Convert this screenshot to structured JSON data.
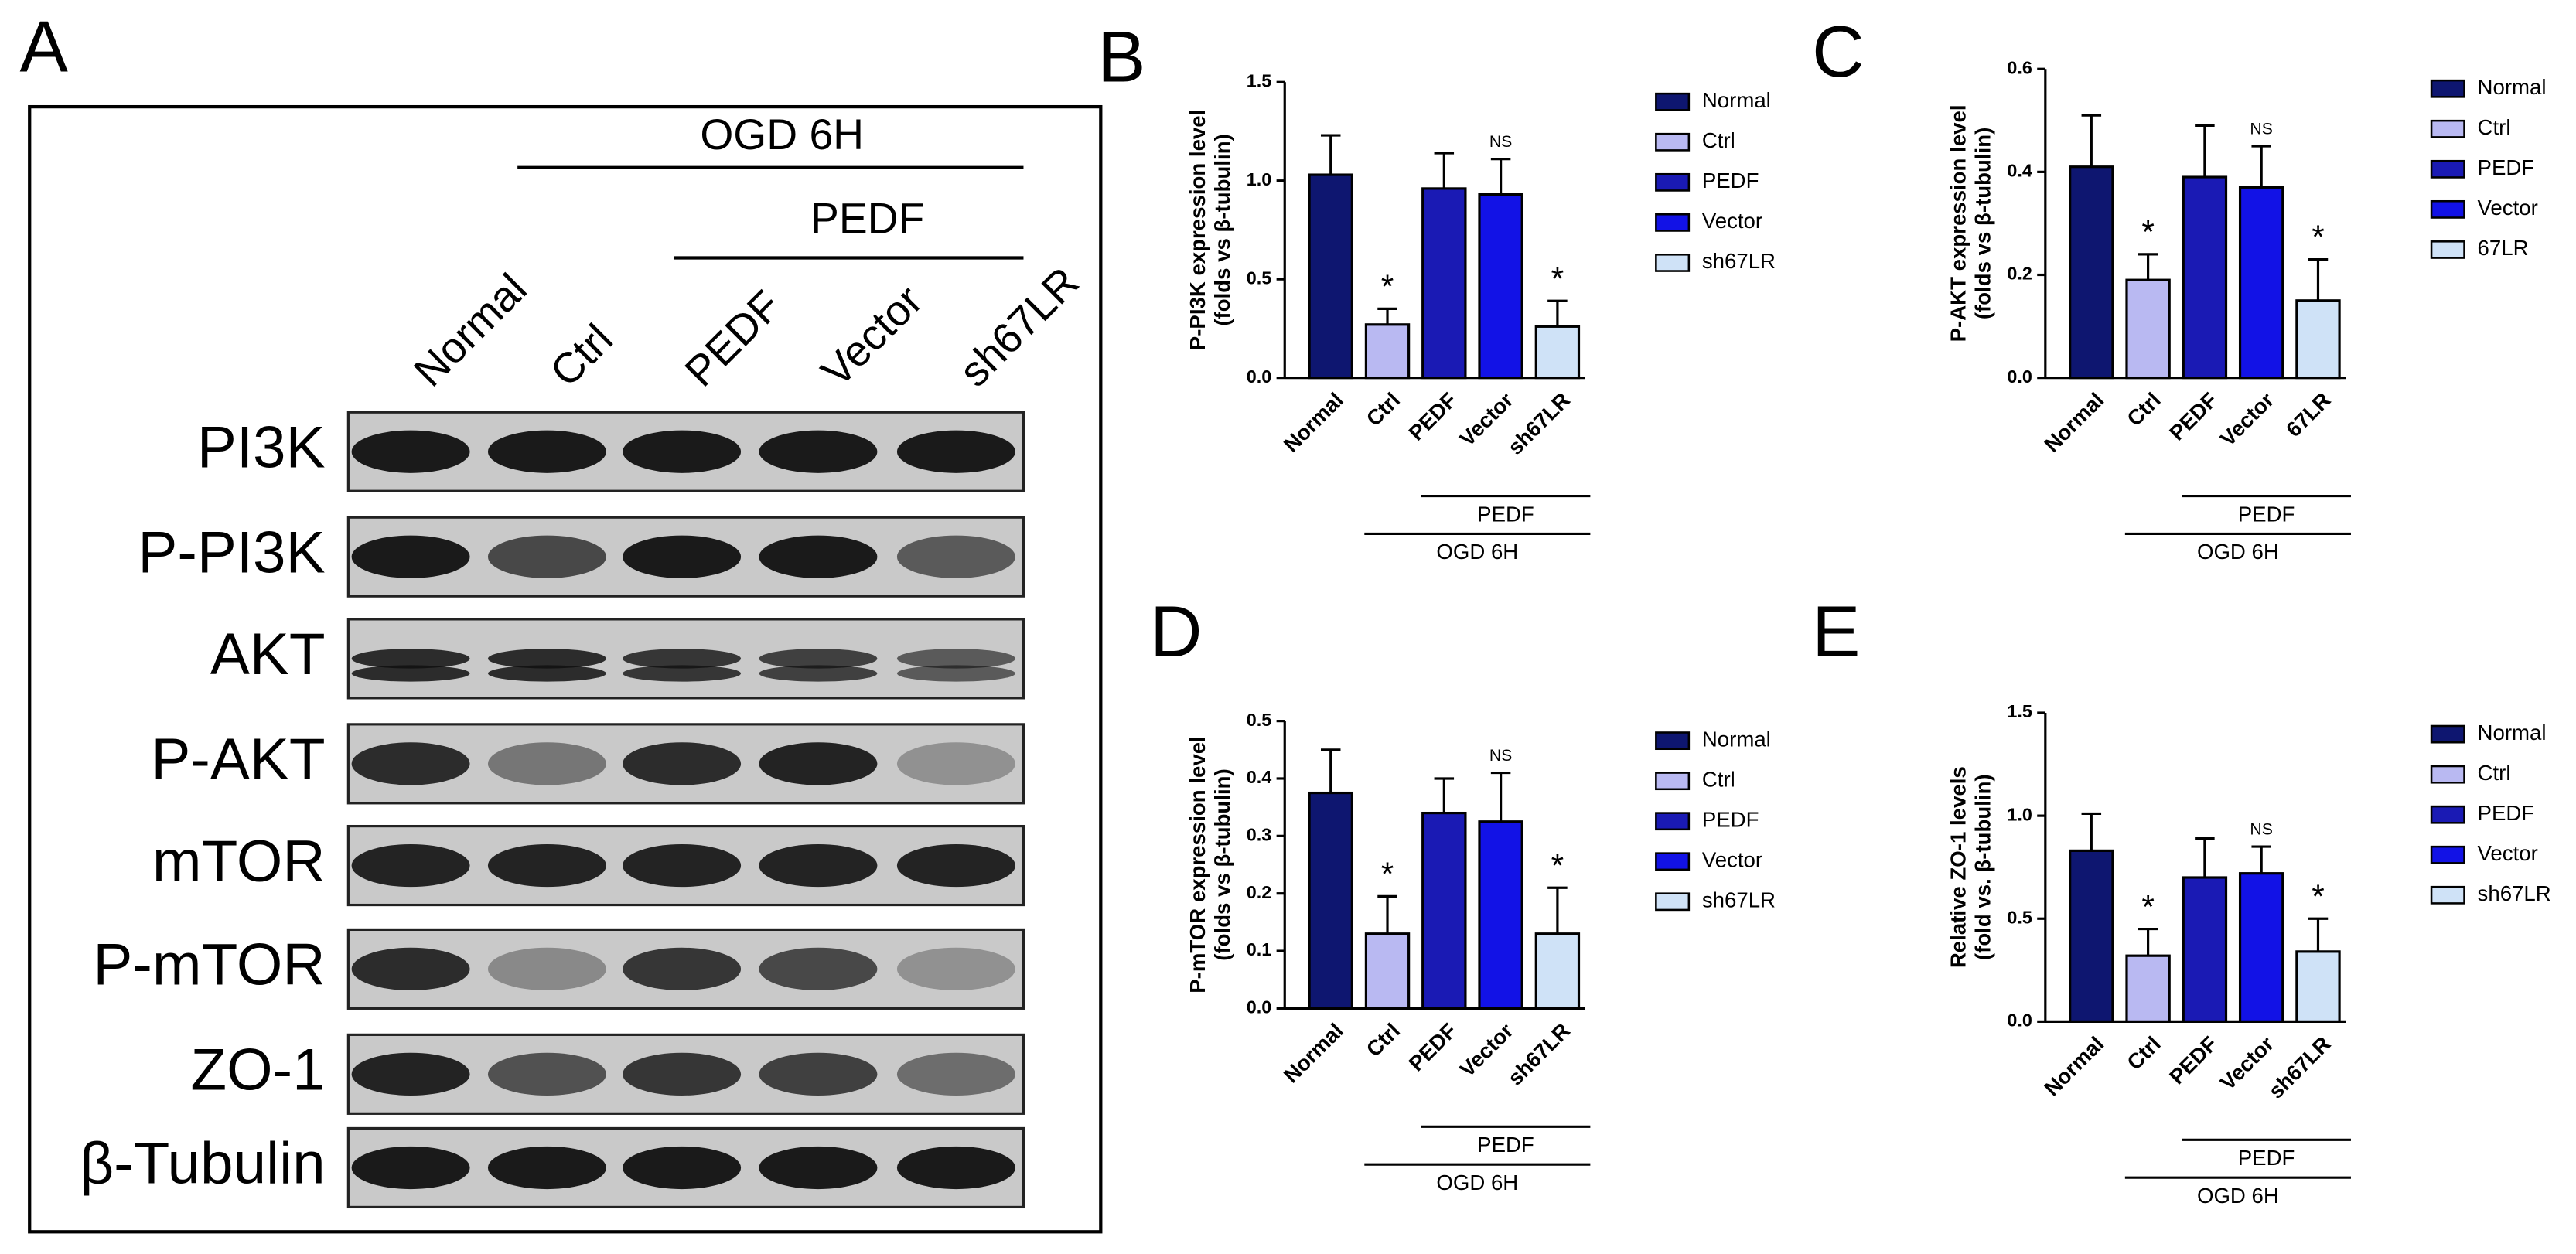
{
  "chart_data": [
    {
      "type": "bar",
      "panel": "B",
      "ylabel": [
        "P-PI3K expression level",
        "(folds vs β-tubulin)"
      ],
      "categories": [
        "Normal",
        "Ctrl",
        "PEDF",
        "Vector",
        "sh67LR"
      ],
      "values": [
        1.03,
        0.27,
        0.96,
        0.93,
        0.26
      ],
      "errors": [
        0.2,
        0.08,
        0.18,
        0.18,
        0.13
      ],
      "colors": [
        "#0e1670",
        "#b9b9f2",
        "#1a1ab4",
        "#1212e6",
        "#cfe2f7"
      ],
      "annotations": [
        null,
        "*",
        null,
        "NS",
        "*"
      ],
      "groups": [
        "PEDF",
        "OGD 6H"
      ],
      "ylim": [
        0,
        1.5
      ],
      "yticks": [
        {
          "value": 0,
          "label": "0.0"
        },
        0.5,
        {
          "value": 1,
          "label": "1.0"
        },
        1.5
      ]
    },
    {
      "type": "bar",
      "panel": "C",
      "ylabel": [
        "P-AKT expression level",
        "(folds vs β-tubulin)"
      ],
      "categories": [
        "Normal",
        "Ctrl",
        "PEDF",
        "Vector",
        "67LR"
      ],
      "values": [
        0.41,
        0.19,
        0.39,
        0.37,
        0.15
      ],
      "errors": [
        0.1,
        0.05,
        0.1,
        0.08,
        0.08
      ],
      "colors": [
        "#0e1670",
        "#b9b9f2",
        "#1a1ab4",
        "#1212e6",
        "#cfe2f7"
      ],
      "annotations": [
        null,
        "*",
        null,
        "NS",
        "*"
      ],
      "groups": [
        "PEDF",
        "OGD 6H"
      ],
      "ylim": [
        0,
        0.6
      ],
      "yticks": [
        {
          "value": 0,
          "label": "0.0"
        },
        0.2,
        0.4,
        0.6
      ]
    },
    {
      "type": "bar",
      "panel": "D",
      "ylabel": [
        "P-mTOR expression level",
        "(folds vs β-tubulin)"
      ],
      "categories": [
        "Normal",
        "Ctrl",
        "PEDF",
        "Vector",
        "sh67LR"
      ],
      "values": [
        0.375,
        0.13,
        0.34,
        0.325,
        0.13
      ],
      "errors": [
        0.075,
        0.065,
        0.06,
        0.085,
        0.08
      ],
      "colors": [
        "#0e1670",
        "#b9b9f2",
        "#1a1ab4",
        "#1212e6",
        "#cfe2f7"
      ],
      "annotations": [
        null,
        "*",
        null,
        "NS",
        "*"
      ],
      "groups": [
        "PEDF",
        "OGD 6H"
      ],
      "ylim": [
        0,
        0.5
      ],
      "yticks": [
        {
          "value": 0,
          "label": "0.0"
        },
        0.1,
        0.2,
        0.3,
        0.4,
        0.5
      ]
    },
    {
      "type": "bar",
      "panel": "E",
      "ylabel": [
        "Relative ZO-1 levels",
        "(fold vs. β-tubulin)"
      ],
      "categories": [
        "Normal",
        "Ctrl",
        "PEDF",
        "Vector",
        "sh67LR"
      ],
      "values": [
        0.83,
        0.32,
        0.7,
        0.72,
        0.34
      ],
      "errors": [
        0.18,
        0.13,
        0.19,
        0.13,
        0.16
      ],
      "colors": [
        "#0e1670",
        "#b9b9f2",
        "#1a1ab4",
        "#1212e6",
        "#cfe2f7"
      ],
      "annotations": [
        null,
        "*",
        null,
        "NS",
        "*"
      ],
      "groups": [
        "PEDF",
        "OGD 6H"
      ],
      "ylim": [
        0,
        1.5
      ],
      "yticks": [
        {
          "value": 0,
          "label": "0.0"
        },
        0.5,
        {
          "value": 1,
          "label": "1.0"
        },
        1.5
      ]
    }
  ],
  "blot": {
    "panel": "A",
    "headers": [
      "OGD  6H",
      "PEDF"
    ],
    "conditions": [
      "Normal",
      "Ctrl",
      "PEDF",
      "Vector",
      "sh67LR"
    ],
    "proteins": [
      "PI3K",
      "P-PI3K",
      "AKT",
      "P-AKT",
      "mTOR",
      "P-mTOR",
      "ZO-1",
      "β-Tubulin"
    ]
  }
}
